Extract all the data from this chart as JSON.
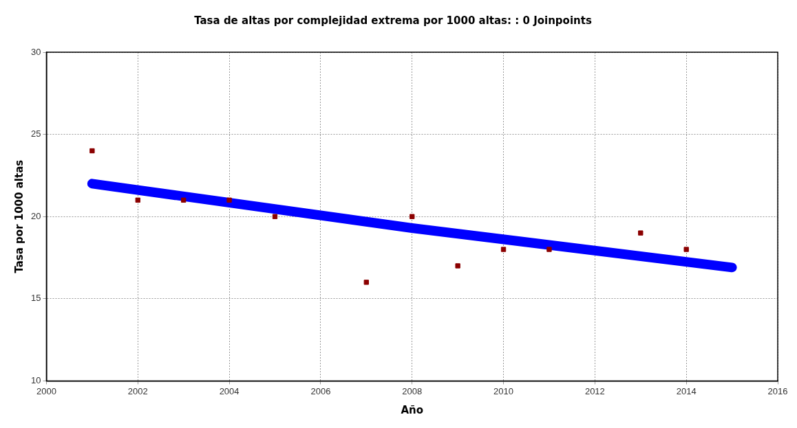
{
  "chart_data": {
    "type": "scatter",
    "title": "Tasa de altas por complejidad extrema por 1000 altas: : 0 Joinpoints",
    "xlabel": "Año",
    "ylabel": "Tasa por 1000 altas",
    "series": [
      {
        "color": "#8b0000",
        "marker": "square",
        "x": [
          2001,
          2002,
          2003,
          2004,
          2005,
          2007,
          2008,
          2009,
          2010,
          2011,
          2013,
          2014
        ],
        "values": [
          24,
          21,
          21,
          21,
          20,
          16,
          20,
          17,
          18,
          18,
          19,
          18
        ]
      },
      {
        "type": "line",
        "color": "#0000ff",
        "x": [
          2001,
          2008,
          2015
        ],
        "values": [
          22.0,
          19.3,
          16.9
        ]
      }
    ],
    "xlim": [
      2000,
      2016
    ],
    "xticks": [
      2000,
      2002,
      2004,
      2006,
      2008,
      2010,
      2012,
      2014,
      2016
    ],
    "ylim": [
      10,
      30
    ],
    "yticks": [
      10,
      15,
      20,
      25,
      30
    ],
    "grid": true
  }
}
